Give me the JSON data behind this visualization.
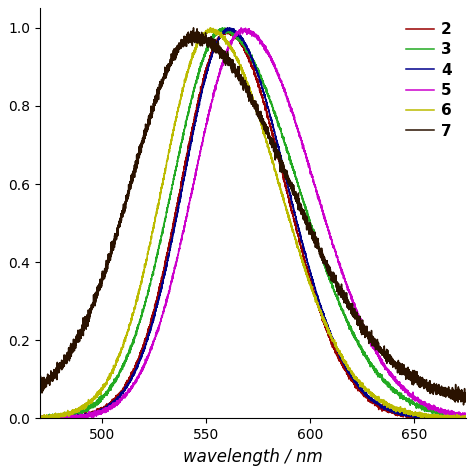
{
  "series": [
    {
      "label": "2",
      "color": "#990000",
      "peak": 560,
      "sigma_l": 22,
      "sigma_r": 28,
      "noise": 0.003,
      "baseline": 0.0
    },
    {
      "label": "3",
      "color": "#22AA22",
      "peak": 558,
      "sigma_l": 24,
      "sigma_r": 36,
      "noise": 0.003,
      "baseline": 0.0
    },
    {
      "label": "4",
      "color": "#00008B",
      "peak": 561,
      "sigma_l": 22,
      "sigma_r": 28,
      "noise": 0.002,
      "baseline": 0.0
    },
    {
      "label": "5",
      "color": "#CC00CC",
      "peak": 568,
      "sigma_l": 24,
      "sigma_r": 34,
      "noise": 0.003,
      "baseline": 0.0
    },
    {
      "label": "6",
      "color": "#BBBB00",
      "peak": 552,
      "sigma_l": 23,
      "sigma_r": 33,
      "noise": 0.003,
      "baseline": 0.0
    },
    {
      "label": "7",
      "color": "#2A1200",
      "peak": 544,
      "sigma_l": 30,
      "sigma_r": 46,
      "noise": 0.008,
      "baseline": 0.04
    }
  ],
  "xmin": 470,
  "xmax": 675,
  "ymin": 0.0,
  "ymax": 1.05,
  "xlabel": "wavelength / nm",
  "xticks": [
    500,
    550,
    600,
    650
  ],
  "yticks": [
    0.0,
    0.2,
    0.4,
    0.6,
    0.8,
    1.0
  ],
  "legend_fontsize": 11,
  "figsize": [
    4.74,
    4.74
  ],
  "dpi": 100
}
